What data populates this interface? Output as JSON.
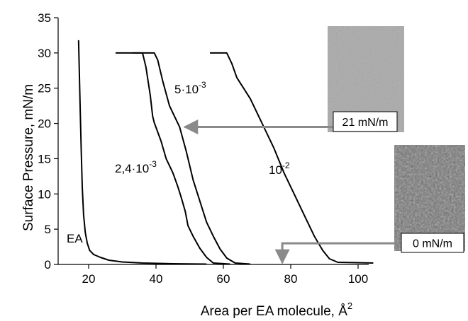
{
  "chart_data": {
    "type": "line",
    "xlabel": "Area per EA molecule, Å",
    "xlabel_sup": "2",
    "ylabel": "Surface Pressure, mN/m",
    "xlim": [
      10,
      106
    ],
    "ylim": [
      0,
      35
    ],
    "xticks": [
      20,
      40,
      60,
      80,
      100
    ],
    "yticks": [
      0,
      5,
      10,
      15,
      20,
      25,
      30,
      35
    ],
    "grid": false,
    "series": [
      {
        "name": "EA",
        "label_base": "EA",
        "label_sup": "",
        "color": "#000000",
        "points": [
          [
            17.0,
            31.8
          ],
          [
            17.2,
            28
          ],
          [
            17.5,
            22
          ],
          [
            17.8,
            16
          ],
          [
            18.1,
            11
          ],
          [
            18.5,
            7
          ],
          [
            19.0,
            4.5
          ],
          [
            19.6,
            3
          ],
          [
            20.3,
            2
          ],
          [
            21.5,
            1.4
          ],
          [
            23.5,
            1.0
          ],
          [
            26,
            0.6
          ],
          [
            30,
            0.35
          ],
          [
            36,
            0.2
          ],
          [
            45,
            0.1
          ],
          [
            55,
            0.05
          ]
        ]
      },
      {
        "name": "2,4·10⁻³",
        "label_base": "2,4·10",
        "label_sup": "-3",
        "color": "#000000",
        "points": [
          [
            28,
            30.0
          ],
          [
            36,
            30.0
          ],
          [
            37,
            28
          ],
          [
            38.3,
            24
          ],
          [
            39,
            21
          ],
          [
            39.5,
            20.1
          ],
          [
            41.5,
            17.5
          ],
          [
            43,
            15
          ],
          [
            45,
            13
          ],
          [
            46.5,
            11
          ],
          [
            47.5,
            9.5
          ],
          [
            48.7,
            7.5
          ],
          [
            49.5,
            5.5
          ],
          [
            51,
            4
          ],
          [
            53,
            2.3
          ],
          [
            55,
            1
          ],
          [
            57,
            0.2
          ],
          [
            62,
            0.05
          ]
        ]
      },
      {
        "name": "5·10⁻³",
        "label_base": "5·10",
        "label_sup": "-3",
        "color": "#000000",
        "points": [
          [
            33,
            30.0
          ],
          [
            39.5,
            30.0
          ],
          [
            40.5,
            29
          ],
          [
            42,
            26
          ],
          [
            44,
            22.5
          ],
          [
            45.5,
            21
          ],
          [
            47,
            19.5
          ],
          [
            49,
            16
          ],
          [
            51,
            12
          ],
          [
            53,
            9
          ],
          [
            55,
            6
          ],
          [
            57,
            4
          ],
          [
            59,
            2.2
          ],
          [
            61,
            0.9
          ],
          [
            63.5,
            0.2
          ],
          [
            68,
            0.05
          ]
        ]
      },
      {
        "name": "10⁻²",
        "label_base": "10",
        "label_sup": "-2",
        "color": "#000000",
        "points": [
          [
            56,
            30.0
          ],
          [
            61,
            30.0
          ],
          [
            62.5,
            28.5
          ],
          [
            64,
            26.5
          ],
          [
            66,
            25
          ],
          [
            68,
            23.5
          ],
          [
            70,
            21.5
          ],
          [
            72.5,
            19
          ],
          [
            75,
            16.5
          ],
          [
            78,
            13
          ],
          [
            81,
            10
          ],
          [
            84,
            7
          ],
          [
            87,
            4
          ],
          [
            89.5,
            2
          ],
          [
            91.5,
            0.8
          ],
          [
            94,
            0.3
          ],
          [
            104.5,
            0.2
          ]
        ]
      }
    ],
    "annotations": [
      {
        "label": "21 mN/m",
        "image": "bam-image-21",
        "texture_color": "#a8a8a8",
        "arrow_from": [
          87,
          19.5
        ],
        "arrow_to": [
          48.5,
          19.5
        ]
      },
      {
        "label": "0 mN/m",
        "image": "bam-image-0",
        "texture_color": "#6f6f6f",
        "arrow_from": [
          106.5,
          3.0
        ],
        "arrow_to": [
          77.5,
          0.25
        ]
      }
    ]
  }
}
